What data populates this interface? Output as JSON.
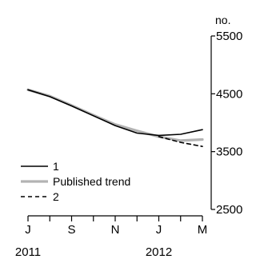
{
  "chart_data": {
    "type": "line",
    "unit_label": "no.",
    "x_ticks": [
      "J",
      "",
      "S",
      "",
      "N",
      "",
      "J",
      "",
      "M"
    ],
    "x_year_labels": [
      {
        "tick_index": 0,
        "label": "2011"
      },
      {
        "tick_index": 6,
        "label": "2012"
      }
    ],
    "y_ticks": [
      2500,
      3500,
      4500,
      5500
    ],
    "ylim": [
      2500,
      5500
    ],
    "grid": false,
    "legend_position": "bottom-left",
    "series": [
      {
        "name": "1",
        "style": "solid",
        "color": "#000000",
        "values": [
          4570,
          4450,
          4290,
          4120,
          3950,
          3820,
          3780,
          3800,
          3880
        ]
      },
      {
        "name": "Published trend",
        "style": "solid",
        "color": "#b3b3b3",
        "values": [
          4570,
          4460,
          4300,
          4130,
          3970,
          3860,
          3760,
          3690,
          3710
        ]
      },
      {
        "name": "2",
        "style": "dashed",
        "color": "#000000",
        "values": [
          null,
          null,
          null,
          null,
          null,
          null,
          3760,
          3660,
          3590
        ]
      }
    ]
  }
}
